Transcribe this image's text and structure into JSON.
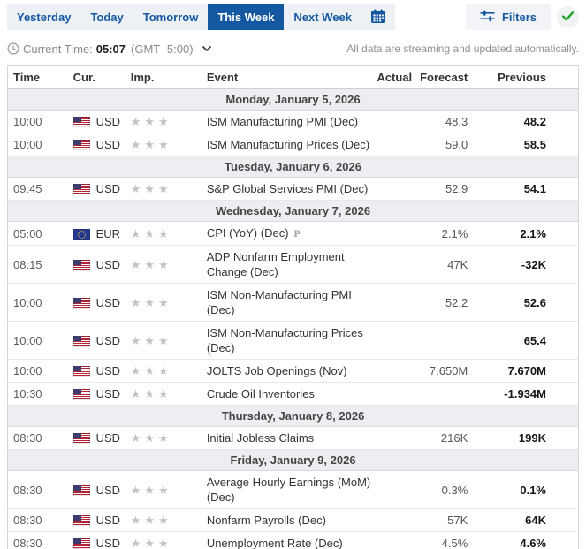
{
  "toolbar": {
    "tabs": [
      {
        "label": "Yesterday",
        "active": false
      },
      {
        "label": "Today",
        "active": false
      },
      {
        "label": "Tomorrow",
        "active": false
      },
      {
        "label": "This Week",
        "active": true
      },
      {
        "label": "Next Week",
        "active": false
      }
    ],
    "calendar_icon": "calendar-icon",
    "filters_label": "Filters",
    "filters_icon": "sliders-icon",
    "streaming_check_icon": "check-icon"
  },
  "status_bar": {
    "clock_icon": "clock-icon",
    "current_time_label": "Current Time:",
    "current_time": "05:07",
    "timezone": "(GMT -5:00)",
    "streaming_note": "All data are streaming and updated automatically."
  },
  "colors": {
    "accent_blue": "#1558a2",
    "check_green": "#1fa32a",
    "day_row_bg": "#eceef2",
    "star_gray": "#bfc3c8",
    "us_flag_red": "#b22234",
    "us_flag_blue": "#3c3b6e",
    "eu_flag_blue": "#24388f"
  },
  "table": {
    "columns": [
      "Time",
      "Cur.",
      "Imp.",
      "Event",
      "Actual",
      "Forecast",
      "Previous"
    ],
    "groups": [
      {
        "date": "Monday, January 5, 2026",
        "rows": [
          {
            "time": "10:00",
            "flag": "US",
            "currency": "USD",
            "importance": 3,
            "event": "ISM Manufacturing PMI (Dec)",
            "actual": "",
            "forecast": "48.3",
            "previous": "48.2"
          },
          {
            "time": "10:00",
            "flag": "US",
            "currency": "USD",
            "importance": 3,
            "event": "ISM Manufacturing Prices (Dec)",
            "actual": "",
            "forecast": "59.0",
            "previous": "58.5"
          }
        ]
      },
      {
        "date": "Tuesday, January 6, 2026",
        "rows": [
          {
            "time": "09:45",
            "flag": "US",
            "currency": "USD",
            "importance": 3,
            "event": "S&P Global Services PMI (Dec)",
            "actual": "",
            "forecast": "52.9",
            "previous": "54.1"
          }
        ]
      },
      {
        "date": "Wednesday, January 7, 2026",
        "rows": [
          {
            "time": "05:00",
            "flag": "EU",
            "currency": "EUR",
            "importance": 3,
            "event": "CPI (YoY) (Dec)",
            "note": "P",
            "actual": "",
            "forecast": "2.1%",
            "previous": "2.1%"
          },
          {
            "time": "08:15",
            "flag": "US",
            "currency": "USD",
            "importance": 3,
            "event": "ADP Nonfarm Employment Change (Dec)",
            "actual": "",
            "forecast": "47K",
            "previous": "-32K"
          },
          {
            "time": "10:00",
            "flag": "US",
            "currency": "USD",
            "importance": 3,
            "event": "ISM Non-Manufacturing PMI (Dec)",
            "actual": "",
            "forecast": "52.2",
            "previous": "52.6"
          },
          {
            "time": "10:00",
            "flag": "US",
            "currency": "USD",
            "importance": 3,
            "event": "ISM Non-Manufacturing Prices (Dec)",
            "actual": "",
            "forecast": "",
            "previous": "65.4"
          },
          {
            "time": "10:00",
            "flag": "US",
            "currency": "USD",
            "importance": 3,
            "event": "JOLTS Job Openings (Nov)",
            "actual": "",
            "forecast": "7.650M",
            "previous": "7.670M"
          },
          {
            "time": "10:30",
            "flag": "US",
            "currency": "USD",
            "importance": 3,
            "event": "Crude Oil Inventories",
            "actual": "",
            "forecast": "",
            "previous": "-1.934M"
          }
        ]
      },
      {
        "date": "Thursday, January 8, 2026",
        "rows": [
          {
            "time": "08:30",
            "flag": "US",
            "currency": "USD",
            "importance": 3,
            "event": "Initial Jobless Claims",
            "actual": "",
            "forecast": "216K",
            "previous": "199K"
          }
        ]
      },
      {
        "date": "Friday, January 9, 2026",
        "rows": [
          {
            "time": "08:30",
            "flag": "US",
            "currency": "USD",
            "importance": 3,
            "event": "Average Hourly Earnings (MoM) (Dec)",
            "actual": "",
            "forecast": "0.3%",
            "previous": "0.1%"
          },
          {
            "time": "08:30",
            "flag": "US",
            "currency": "USD",
            "importance": 3,
            "event": "Nonfarm Payrolls (Dec)",
            "actual": "",
            "forecast": "57K",
            "previous": "64K"
          },
          {
            "time": "08:30",
            "flag": "US",
            "currency": "USD",
            "importance": 3,
            "event": "Unemployment Rate (Dec)",
            "actual": "",
            "forecast": "4.5%",
            "previous": "4.6%"
          }
        ]
      }
    ]
  }
}
